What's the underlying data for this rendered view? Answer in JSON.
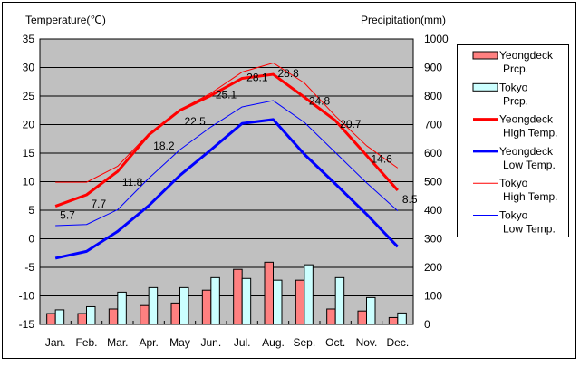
{
  "chart_data": {
    "type": "bar+line",
    "y_left_label": "Temperature(℃)",
    "y_right_label": "Precipitation(mm)",
    "y_left_range": [
      -15,
      35
    ],
    "y_left_ticks": [
      35,
      30,
      25,
      20,
      15,
      10,
      5,
      0,
      -5,
      -10,
      -15
    ],
    "y_right_range": [
      0,
      1000
    ],
    "y_right_ticks": [
      1000,
      900,
      800,
      700,
      600,
      500,
      400,
      300,
      200,
      100,
      0
    ],
    "categories": [
      "Jan.",
      "Feb.",
      "Mar.",
      "Apr.",
      "May",
      "Jun.",
      "Jul.",
      "Aug.",
      "Sep.",
      "Oct.",
      "Nov.",
      "Dec."
    ],
    "grid": true,
    "legend_position": "right",
    "bar_series": [
      {
        "name": "Yeongdeck Prcp.",
        "legend": [
          "Yeongdeck",
          "Prcp."
        ],
        "color": "#ff8080",
        "values": [
          38,
          38,
          54,
          66,
          75,
          120,
          193,
          218,
          155,
          54,
          47,
          24
        ]
      },
      {
        "name": "Tokyo Prcp.",
        "legend": [
          "Tokyo",
          "Prcp."
        ],
        "color": "#ccffff",
        "values": [
          51,
          62,
          113,
          129,
          129,
          164,
          161,
          155,
          209,
          164,
          94,
          40
        ]
      }
    ],
    "line_series": [
      {
        "name": "Yeongdeck High Temp.",
        "legend": [
          "Yeongdeck",
          "High Temp."
        ],
        "color": "#ff0000",
        "width": "thick",
        "labeled": true,
        "values": [
          5.7,
          7.7,
          11.8,
          18.2,
          22.5,
          25.1,
          28.1,
          28.8,
          24.8,
          20.7,
          14.6,
          8.5
        ]
      },
      {
        "name": "Yeongdeck Low Temp.",
        "legend": [
          "Yeongdeck",
          "Low Temp."
        ],
        "color": "#0000ff",
        "width": "thick",
        "labeled": false,
        "values": [
          -3.4,
          -2.2,
          1.3,
          5.8,
          11.1,
          15.6,
          20.2,
          20.9,
          14.8,
          9.6,
          4.3,
          -1.4
        ]
      },
      {
        "name": "Tokyo High Temp.",
        "legend": [
          "Tokyo",
          "High Temp."
        ],
        "color": "#ff0000",
        "width": "thin",
        "labeled": false,
        "values": [
          9.9,
          9.9,
          12.7,
          18.4,
          22.6,
          25.5,
          29.2,
          30.8,
          27.3,
          21.5,
          16.3,
          12.4
        ]
      },
      {
        "name": "Tokyo Low Temp.",
        "legend": [
          "Tokyo",
          "Low Temp."
        ],
        "color": "#0000ff",
        "width": "thin",
        "labeled": false,
        "values": [
          2.3,
          2.5,
          5.1,
          10.6,
          15.6,
          19.6,
          23.1,
          24.2,
          20.4,
          15.1,
          9.8,
          4.9
        ]
      }
    ]
  }
}
